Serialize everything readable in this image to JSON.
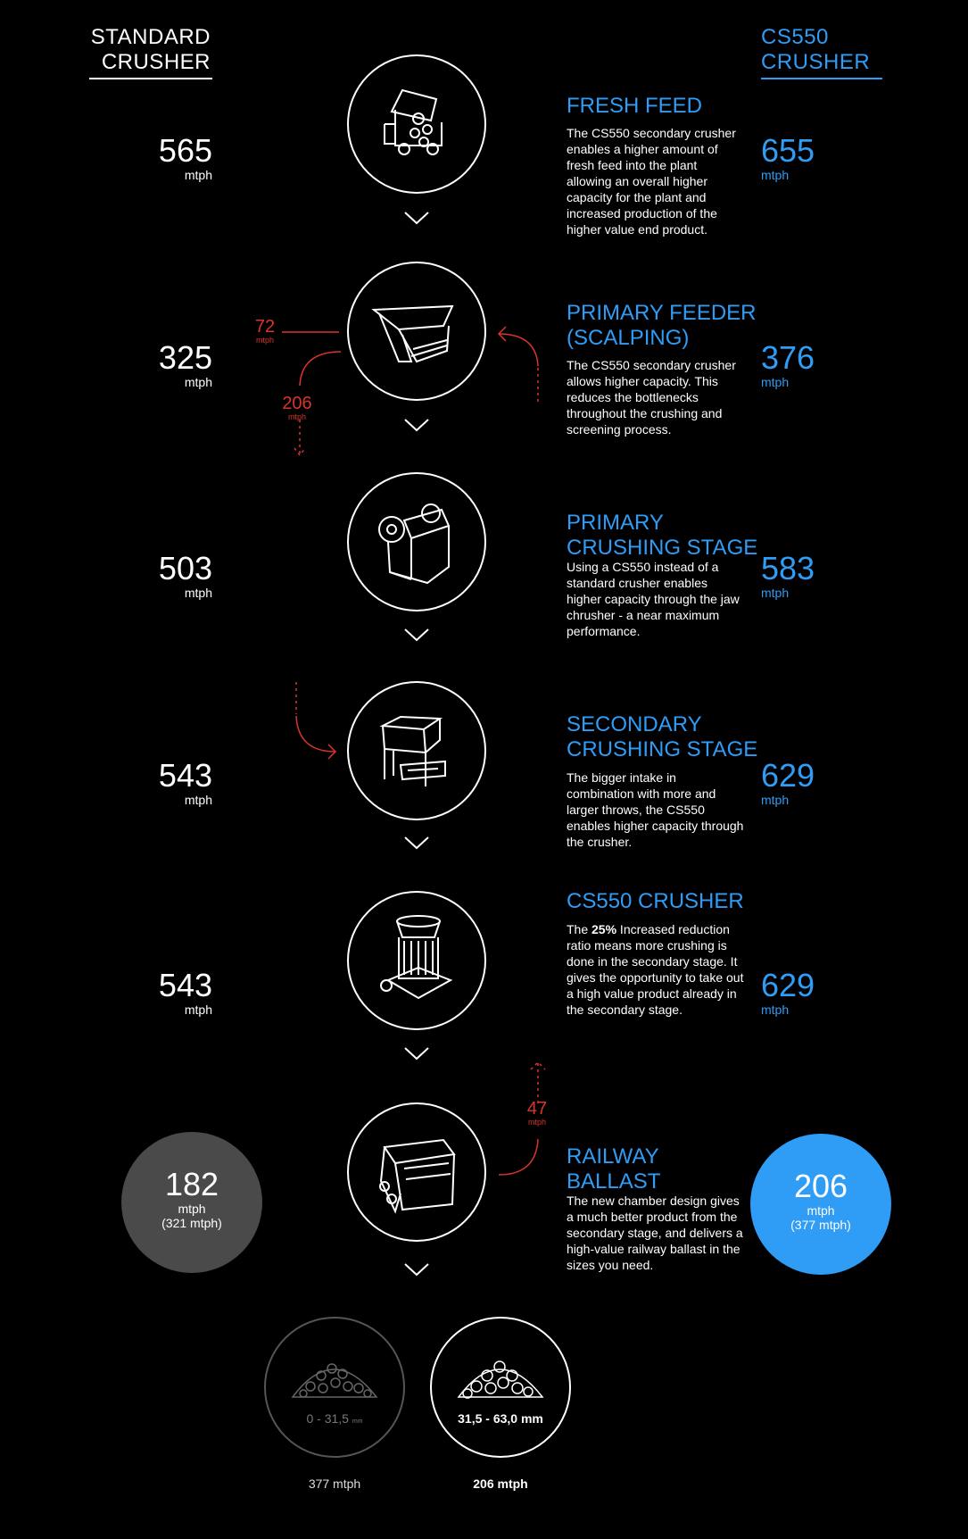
{
  "header": {
    "left": [
      "STANDARD",
      "CRUSHER"
    ],
    "right": [
      "CS550",
      "CRUSHER"
    ]
  },
  "steps": [
    {
      "title": [
        "FRESH FEED"
      ],
      "desc": "The CS550 secondary crusher enables a higher amount of fresh feed into the plant allowing an overall higher capacity for the plant and increased production of the higher value end product.",
      "left_value": "565",
      "right_value": "655",
      "unit": "mtph",
      "icon": "dump-truck-icon"
    },
    {
      "title": [
        "PRIMARY FEEDER",
        "(SCALPING)"
      ],
      "desc": "The CS550 secondary crusher allows higher capacity. This reduces the bottlenecks throughout the crushing and screening process.",
      "left_value": "325",
      "right_value": "376",
      "unit": "mtph",
      "icon": "feeder-icon"
    },
    {
      "title": [
        "PRIMARY",
        "CRUSHING STAGE"
      ],
      "desc": "Using a CS550 instead of a standard crusher enables higher capacity through the jaw chrusher - a near maximum performance.",
      "left_value": "503",
      "right_value": "583",
      "unit": "mtph",
      "icon": "jaw-crusher-icon"
    },
    {
      "title": [
        "SECONDARY",
        "CRUSHING STAGE"
      ],
      "desc": "The bigger intake in combination with more and larger throws, the CS550 enables higher capacity through the crusher.",
      "left_value": "543",
      "right_value": "629",
      "unit": "mtph",
      "icon": "hopper-icon"
    },
    {
      "title": [
        "CS550 CRUSHER"
      ],
      "desc_pre": "The ",
      "desc_bold": "25%",
      "desc_post": " Increased reduction ratio means more crushing is done in the secondary stage. It gives the opportunity to take out a high value product already in the secondary stage.",
      "left_value": "543",
      "right_value": "629",
      "unit": "mtph",
      "icon": "cone-crusher-icon"
    },
    {
      "title": [
        "RAILWAY",
        "BALLAST"
      ],
      "desc": "The new chamber design gives a much better product from the secondary stage, and delivers a high-value railway ballast in the sizes you need.",
      "icon": "screen-icon"
    }
  ],
  "flows": {
    "bypass_in": {
      "value": "72",
      "unit": "mtph"
    },
    "bypass_down": {
      "value": "206",
      "unit": "mtph"
    },
    "recirc": {
      "value": "47",
      "unit": "mtph"
    }
  },
  "totals": {
    "left": {
      "value": "182",
      "unit": "mtph",
      "sub": "(321 mtph)"
    },
    "right": {
      "value": "206",
      "unit": "mtph",
      "sub": "(377 mtph)"
    }
  },
  "products": {
    "left": {
      "size": "0 - 31,5",
      "size_unit": "mm",
      "rate": "377 mtph"
    },
    "right": {
      "size": "31,5 - 63,0 mm",
      "rate": "206 mtph"
    }
  },
  "colors": {
    "accent": "#2f9cf5",
    "flow": "#d9342b",
    "background": "#000000",
    "grey_total": "#4a4a4a"
  }
}
